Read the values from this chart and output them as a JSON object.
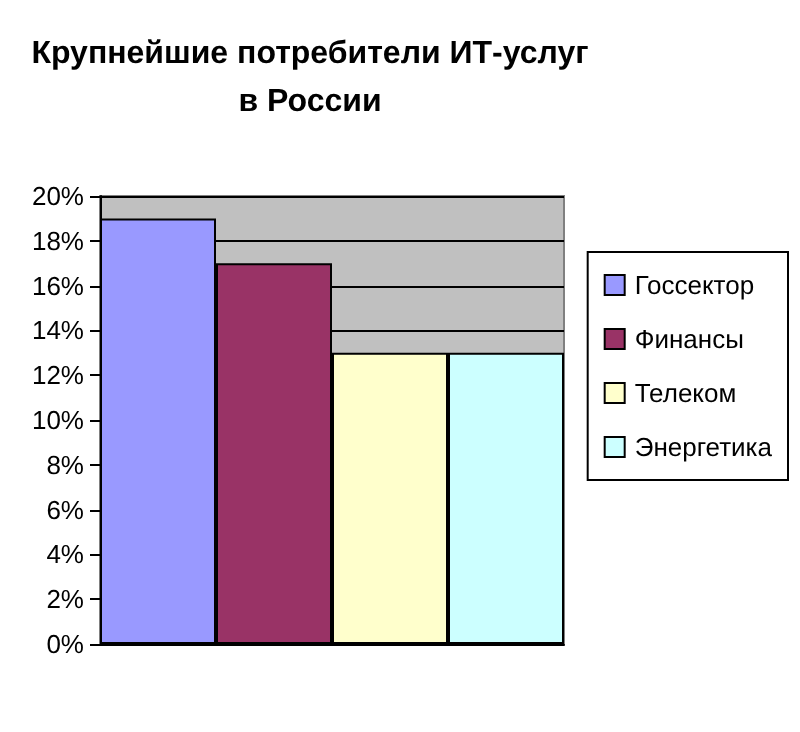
{
  "chart_data": {
    "type": "bar",
    "title": "Крупнейшие потребители ИТ-услуг\nв России",
    "categories": [
      null
    ],
    "series": [
      {
        "name": "Госсектор",
        "color": "#9999ff",
        "values": [
          19
        ]
      },
      {
        "name": "Финансы",
        "color": "#993366",
        "values": [
          17
        ]
      },
      {
        "name": "Телеком",
        "color": "#ffffcc",
        "values": [
          13
        ]
      },
      {
        "name": "Энергетика",
        "color": "#ccffff",
        "values": [
          13
        ]
      }
    ],
    "ylim": [
      0,
      20
    ],
    "yticks": [
      {
        "value": 0,
        "label": "0%"
      },
      {
        "value": 2,
        "label": "2%"
      },
      {
        "value": 4,
        "label": "4%"
      },
      {
        "value": 6,
        "label": "6%"
      },
      {
        "value": 8,
        "label": "8%"
      },
      {
        "value": 10,
        "label": "10%"
      },
      {
        "value": 12,
        "label": "12%"
      },
      {
        "value": 14,
        "label": "14%"
      },
      {
        "value": 16,
        "label": "16%"
      },
      {
        "value": 18,
        "label": "18%"
      },
      {
        "value": 20,
        "label": "20%"
      }
    ],
    "grid": "y",
    "legend": "right"
  }
}
